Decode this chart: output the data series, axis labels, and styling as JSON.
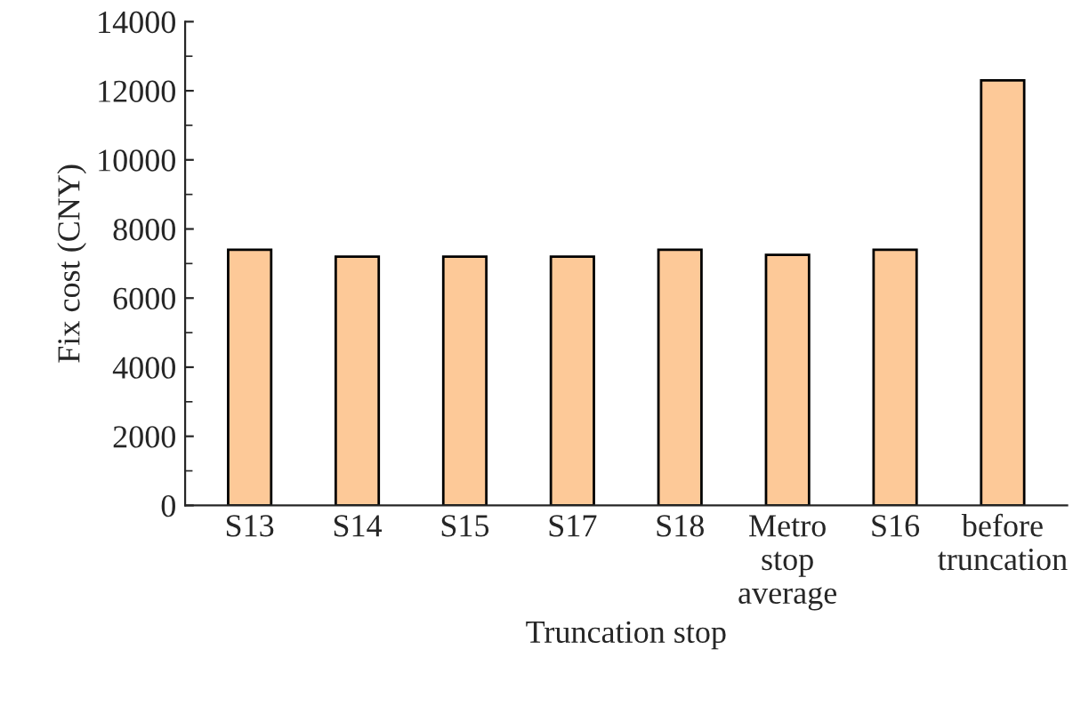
{
  "chart_data": {
    "type": "bar",
    "xlabel": "Truncation stop",
    "ylabel": "Fix cost (CNY)",
    "categories": [
      "S13",
      "S14",
      "S15",
      "S17",
      "S18",
      "Metro\nstop\naverage",
      "S16",
      "before\ntruncation"
    ],
    "values": [
      7400,
      7200,
      7200,
      7200,
      7400,
      7250,
      7400,
      12300
    ],
    "color": "#fdc998",
    "ylim": [
      0,
      14000
    ],
    "yticks": [
      0,
      2000,
      4000,
      6000,
      8000,
      10000,
      12000,
      14000
    ],
    "grid": false,
    "legend": false
  }
}
